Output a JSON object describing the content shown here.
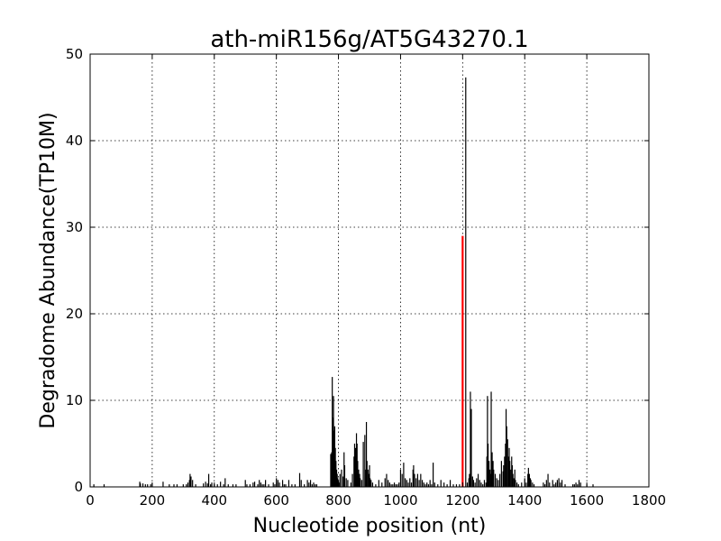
{
  "chart_data": {
    "type": "bar",
    "title": "ath-miR156g/AT5G43270.1",
    "xlabel": "Nucleotide position (nt)",
    "ylabel": "Degradome Abundance(TP10M)",
    "xlim": [
      0,
      1800
    ],
    "ylim": [
      0,
      50
    ],
    "xticks": [
      0,
      200,
      400,
      600,
      800,
      1000,
      1200,
      1400,
      1600,
      1800
    ],
    "yticks": [
      0,
      10,
      20,
      30,
      40,
      50
    ],
    "grid": true,
    "series": [
      {
        "color": "#000000",
        "x": [
          12,
          45,
          160,
          162,
          170,
          178,
          185,
          195,
          200,
          235,
          255,
          270,
          280,
          300,
          310,
          315,
          320,
          322,
          325,
          330,
          340,
          365,
          372,
          378,
          382,
          388,
          392,
          400,
          410,
          420,
          430,
          435,
          445,
          460,
          470,
          500,
          505,
          515,
          525,
          530,
          540,
          545,
          550,
          555,
          560,
          565,
          575,
          590,
          595,
          600,
          605,
          610,
          620,
          625,
          630,
          640,
          650,
          660,
          675,
          680,
          690,
          700,
          705,
          710,
          715,
          720,
          725,
          730,
          775,
          778,
          780,
          782,
          784,
          786,
          788,
          790,
          792,
          794,
          796,
          798,
          800,
          802,
          805,
          810,
          815,
          818,
          820,
          825,
          830,
          840,
          845,
          850,
          852,
          855,
          858,
          860,
          862,
          865,
          868,
          870,
          875,
          880,
          885,
          888,
          890,
          892,
          895,
          898,
          900,
          902,
          905,
          910,
          920,
          930,
          940,
          950,
          955,
          960,
          965,
          970,
          975,
          980,
          985,
          990,
          995,
          1000,
          1005,
          1010,
          1015,
          1020,
          1025,
          1030,
          1035,
          1040,
          1042,
          1045,
          1050,
          1055,
          1060,
          1065,
          1070,
          1075,
          1080,
          1085,
          1090,
          1095,
          1100,
          1105,
          1110,
          1120,
          1130,
          1140,
          1150,
          1160,
          1170,
          1180,
          1190,
          1201,
          1210,
          1215,
          1220,
          1222,
          1225,
          1228,
          1232,
          1235,
          1240,
          1245,
          1250,
          1255,
          1260,
          1265,
          1270,
          1275,
          1278,
          1280,
          1282,
          1285,
          1288,
          1290,
          1292,
          1295,
          1298,
          1300,
          1305,
          1310,
          1315,
          1320,
          1325,
          1330,
          1332,
          1335,
          1338,
          1340,
          1342,
          1345,
          1348,
          1350,
          1352,
          1355,
          1358,
          1360,
          1362,
          1365,
          1368,
          1370,
          1375,
          1380,
          1390,
          1400,
          1405,
          1410,
          1412,
          1415,
          1418,
          1420,
          1425,
          1430,
          1460,
          1465,
          1470,
          1475,
          1480,
          1490,
          1495,
          1500,
          1505,
          1510,
          1515,
          1520,
          1530,
          1555,
          1560,
          1565,
          1570,
          1575,
          1580,
          1600,
          1620
        ],
        "values": [
          0.3,
          0.3,
          0.6,
          0.4,
          0.4,
          0.3,
          0.3,
          0.3,
          0.4,
          0.6,
          0.3,
          0.3,
          0.3,
          0.3,
          0.3,
          0.5,
          0.8,
          1.5,
          1.2,
          0.8,
          0.3,
          0.4,
          0.6,
          0.4,
          1.5,
          0.3,
          0.5,
          0.3,
          0.3,
          0.6,
          0.3,
          1.0,
          0.3,
          0.3,
          0.3,
          0.8,
          0.3,
          0.3,
          0.5,
          0.6,
          0.3,
          0.8,
          0.5,
          0.3,
          0.3,
          0.8,
          0.3,
          0.5,
          0.3,
          1.0,
          0.8,
          0.5,
          0.8,
          0.3,
          0.3,
          0.8,
          0.3,
          0.3,
          1.6,
          0.8,
          0.3,
          0.8,
          0.5,
          0.8,
          0.3,
          0.5,
          0.3,
          0.3,
          3.8,
          4.0,
          12.7,
          8.0,
          10.5,
          6.5,
          7.0,
          4.5,
          3.0,
          2.0,
          1.5,
          1.0,
          0.8,
          0.5,
          1.5,
          2.0,
          1.2,
          4.0,
          2.5,
          1.0,
          0.8,
          0.5,
          1.5,
          3.5,
          5.0,
          4.5,
          6.2,
          5.0,
          3.0,
          2.0,
          1.5,
          1.0,
          0.8,
          5.2,
          6.0,
          2.0,
          7.5,
          3.0,
          2.0,
          1.5,
          2.5,
          1.0,
          0.8,
          0.5,
          0.3,
          0.8,
          0.5,
          1.0,
          1.5,
          0.8,
          0.5,
          0.3,
          0.3,
          0.5,
          0.3,
          0.3,
          0.5,
          2.0,
          1.5,
          2.8,
          1.0,
          0.8,
          0.5,
          1.0,
          0.5,
          2.0,
          2.5,
          1.5,
          1.0,
          1.5,
          0.8,
          1.5,
          0.8,
          0.5,
          0.3,
          0.5,
          0.3,
          0.8,
          0.3,
          2.8,
          0.5,
          0.3,
          0.8,
          0.5,
          0.3,
          0.8,
          0.3,
          0.3,
          0.3,
          0.3,
          47.3,
          0.5,
          1.0,
          1.5,
          11.0,
          9.0,
          1.2,
          0.8,
          0.5,
          1.0,
          1.5,
          0.8,
          0.5,
          0.3,
          0.8,
          0.5,
          3.5,
          10.5,
          5.0,
          3.0,
          2.0,
          1.5,
          11.0,
          4.0,
          3.0,
          2.0,
          1.5,
          1.0,
          0.8,
          1.5,
          3.0,
          1.8,
          2.5,
          3.5,
          5.0,
          9.0,
          7.0,
          5.5,
          3.5,
          4.5,
          3.0,
          2.0,
          3.5,
          2.5,
          1.5,
          1.0,
          2.0,
          0.8,
          0.5,
          0.3,
          0.5,
          1.0,
          0.5,
          1.5,
          2.2,
          1.5,
          1.0,
          0.8,
          0.5,
          0.3,
          0.5,
          0.3,
          0.8,
          1.5,
          0.5,
          0.8,
          0.3,
          0.5,
          0.8,
          1.0,
          0.5,
          0.8,
          0.3,
          0.3,
          0.3,
          0.5,
          0.3,
          0.8,
          0.5,
          0.3,
          0.3
        ]
      },
      {
        "color": "#ff0000",
        "x": [
          1200
        ],
        "values": [
          29.0
        ]
      }
    ]
  }
}
